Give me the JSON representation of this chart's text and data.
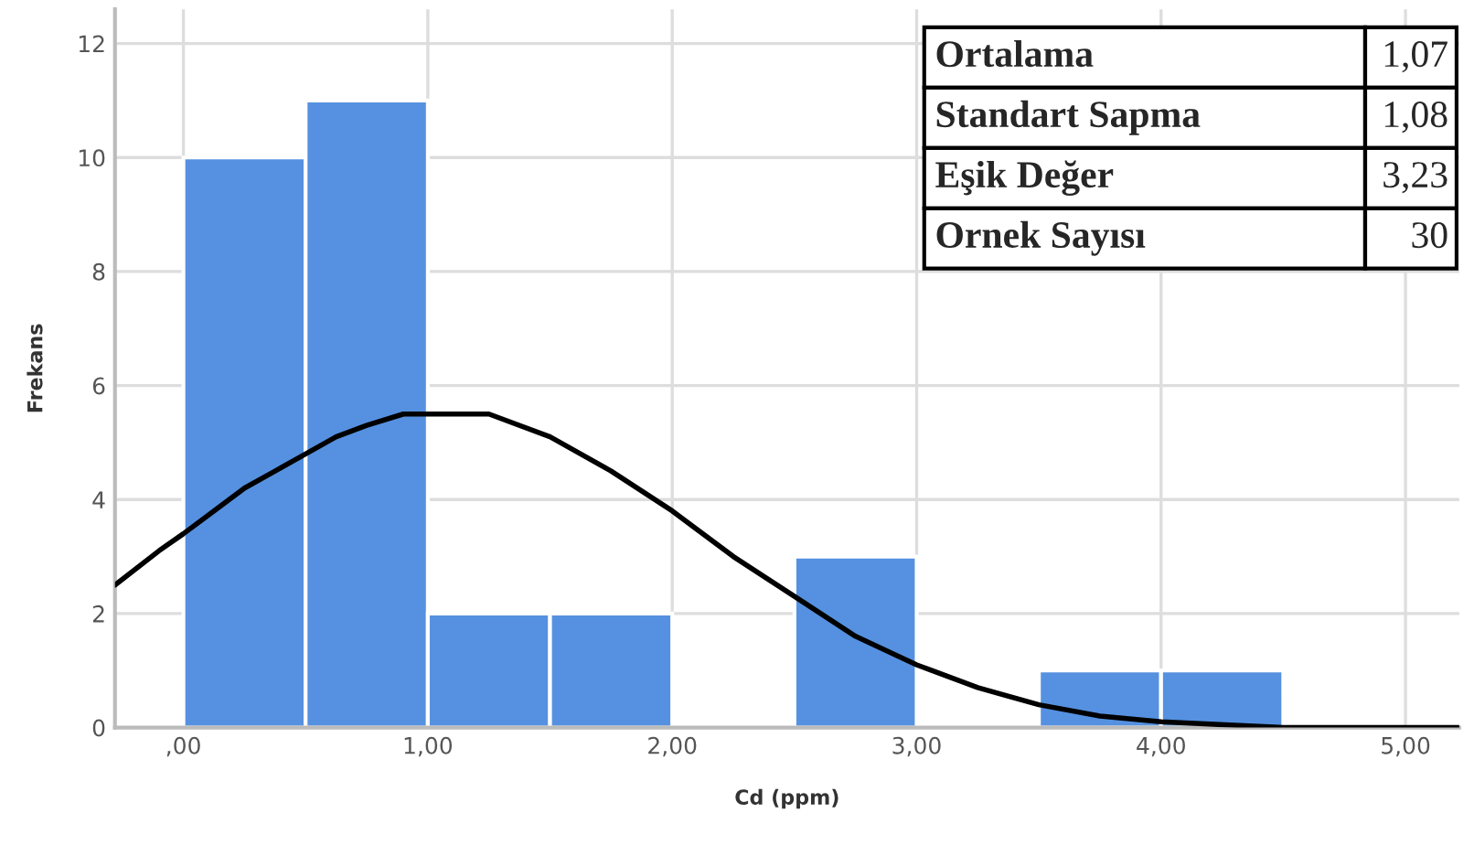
{
  "chart_data": {
    "type": "histogram",
    "xlabel": "Cd (ppm)",
    "ylabel": "Frekans",
    "bins": [
      0,
      0.5,
      1,
      1.5,
      2,
      2.5,
      3,
      3.5,
      4,
      4.5
    ],
    "values": [
      10,
      11,
      2,
      2,
      0,
      3,
      0,
      1,
      1
    ],
    "color": "#5591e0",
    "series": [
      {
        "type": "line",
        "color": "#000000",
        "x": [
          -0.28,
          -0.1,
          0,
          0.125,
          0.25,
          0.375,
          0.5,
          0.625,
          0.75,
          0.9,
          1.07,
          1.25,
          1.5,
          1.75,
          2,
          2.25,
          2.5,
          2.75,
          3,
          3.25,
          3.5,
          3.75,
          4,
          4.5,
          5,
          5.22
        ],
        "values": [
          2.5,
          3.1,
          3.4,
          3.8,
          4.2,
          4.5,
          4.8,
          5.1,
          5.3,
          5.5,
          5.5,
          5.5,
          5.1,
          4.5,
          3.8,
          3.0,
          2.3,
          1.6,
          1.1,
          0.7,
          0.4,
          0.2,
          0.1,
          0.0,
          0.0,
          0.0
        ]
      }
    ],
    "xlim": [
      -0.28,
      5.22
    ],
    "ylim": [
      0,
      12.6
    ],
    "xticks": [
      {
        "value": 0,
        "label": ",00"
      },
      {
        "value": 1,
        "label": "1,00"
      },
      {
        "value": 2,
        "label": "2,00"
      },
      {
        "value": 3,
        "label": "3,00"
      },
      {
        "value": 4,
        "label": "4,00"
      },
      {
        "value": 5,
        "label": "5,00"
      }
    ],
    "yticks": [
      0,
      2,
      4,
      6,
      8,
      10,
      12
    ],
    "grid": true,
    "line_style": "solid",
    "marker": "none",
    "annotations": [
      "Ortalama",
      "1,07",
      "Standart Sapma",
      "1,08",
      "Eşik Değer",
      "3,23",
      "Ornek Sayısı",
      "30"
    ]
  }
}
